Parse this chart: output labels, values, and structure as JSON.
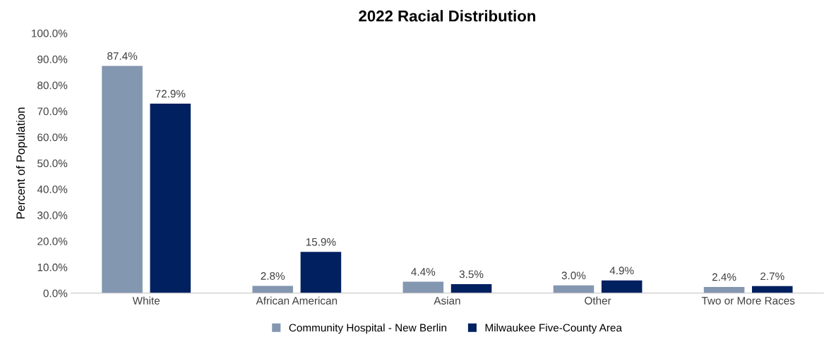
{
  "chart_data": {
    "type": "bar",
    "title": "2022 Racial Distribution",
    "ylabel": "Percent of Population",
    "categories": [
      "White",
      "African American",
      "Asian",
      "Other",
      "Two or More Races"
    ],
    "series": [
      {
        "name": "Community Hospital - New Berlin",
        "color": "#8497b0",
        "values": [
          87.4,
          2.8,
          4.4,
          3.0,
          2.4
        ],
        "value_labels": [
          "87.4%",
          "2.8%",
          "4.4%",
          "3.0%",
          "2.4%"
        ]
      },
      {
        "name": "Milwaukee Five-County Area",
        "color": "#002060",
        "values": [
          72.9,
          15.9,
          3.5,
          4.9,
          2.7
        ],
        "value_labels": [
          "72.9%",
          "15.9%",
          "3.5%",
          "4.9%",
          "2.7%"
        ]
      }
    ],
    "ylim": [
      0,
      100
    ],
    "yticks": [
      {
        "value": 0,
        "label": "0.0%"
      },
      {
        "value": 10,
        "label": "10.0%"
      },
      {
        "value": 20,
        "label": "20.0%"
      },
      {
        "value": 30,
        "label": "30.0%"
      },
      {
        "value": 40,
        "label": "40.0%"
      },
      {
        "value": 50,
        "label": "50.0%"
      },
      {
        "value": 60,
        "label": "60.0%"
      },
      {
        "value": 70,
        "label": "70.0%"
      },
      {
        "value": 80,
        "label": "80.0%"
      },
      {
        "value": 90,
        "label": "90.0%"
      },
      {
        "value": 100,
        "label": "100.0%"
      }
    ],
    "grid": false,
    "legend": "bottom"
  }
}
